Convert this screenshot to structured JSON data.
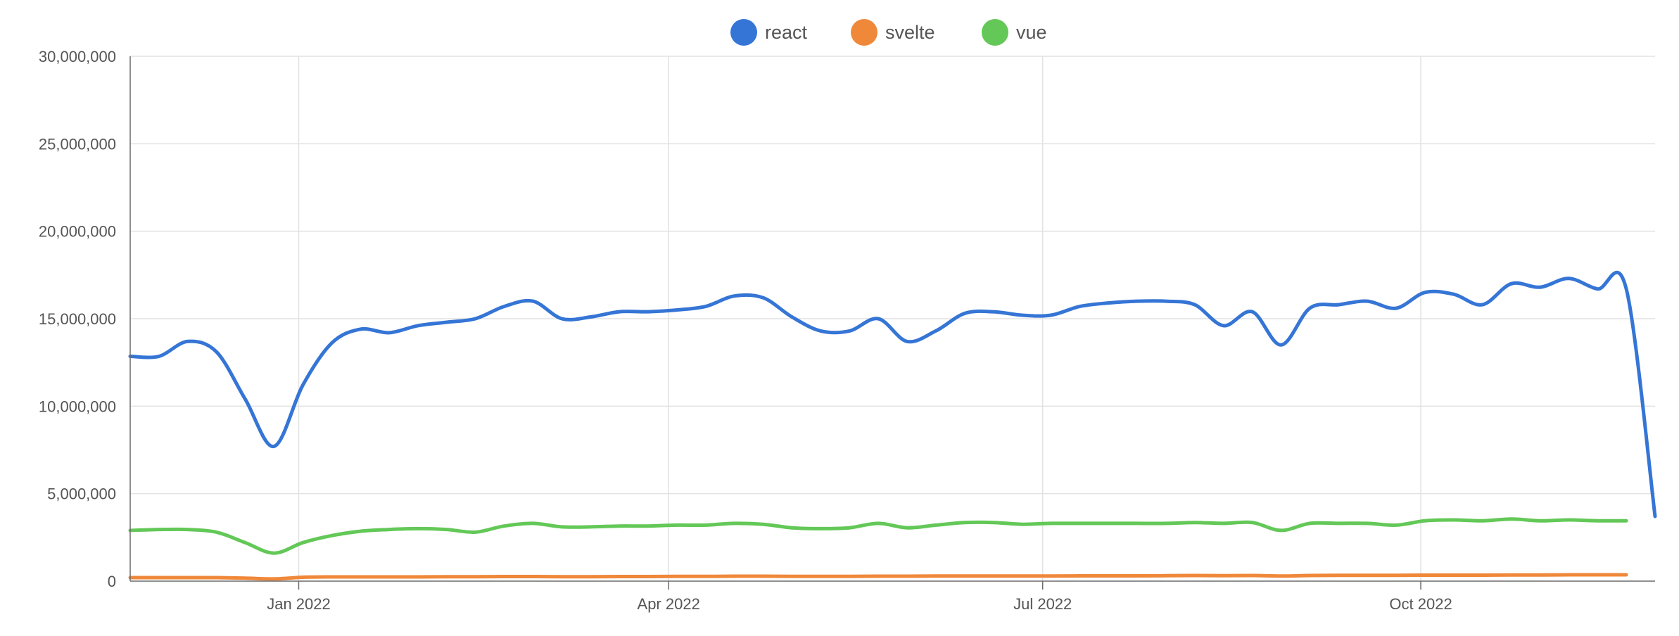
{
  "chart_data": {
    "type": "line",
    "legend_position": "top-center",
    "grid": true,
    "x_range": [
      "2021-11-21",
      "2022-11-20"
    ],
    "ylim": [
      0,
      30000000
    ],
    "y_ticks": [
      0,
      5000000,
      10000000,
      15000000,
      20000000,
      25000000,
      30000000
    ],
    "y_tick_labels": [
      "0",
      "5,000,000",
      "10,000,000",
      "15,000,000",
      "20,000,000",
      "25,000,000",
      "30,000,000"
    ],
    "x_ticks": [
      {
        "date": "2022-01-01",
        "label": "Jan 2022"
      },
      {
        "date": "2022-04-01",
        "label": "Apr 2022"
      },
      {
        "date": "2022-07-01",
        "label": "Jul 2022"
      },
      {
        "date": "2022-10-01",
        "label": "Oct 2022"
      }
    ],
    "highlight_date": "2022-01-01",
    "series": [
      {
        "name": "react",
        "color": "#3575d5",
        "points": [
          [
            "2021-11-21",
            12850000
          ],
          [
            "2021-11-28",
            12850000
          ],
          [
            "2021-12-05",
            13700000
          ],
          [
            "2021-12-12",
            13100000
          ],
          [
            "2021-12-19",
            10400000
          ],
          [
            "2021-12-26",
            7700000
          ],
          [
            "2022-01-02",
            11200000
          ],
          [
            "2022-01-09",
            13600000
          ],
          [
            "2022-01-16",
            14400000
          ],
          [
            "2022-01-23",
            14200000
          ],
          [
            "2022-01-30",
            14600000
          ],
          [
            "2022-02-06",
            14800000
          ],
          [
            "2022-02-13",
            15000000
          ],
          [
            "2022-02-20",
            15700000
          ],
          [
            "2022-02-27",
            16000000
          ],
          [
            "2022-03-06",
            15000000
          ],
          [
            "2022-03-13",
            15100000
          ],
          [
            "2022-03-20",
            15400000
          ],
          [
            "2022-03-27",
            15400000
          ],
          [
            "2022-04-03",
            15500000
          ],
          [
            "2022-04-10",
            15700000
          ],
          [
            "2022-04-17",
            16300000
          ],
          [
            "2022-04-24",
            16200000
          ],
          [
            "2022-05-01",
            15100000
          ],
          [
            "2022-05-08",
            14300000
          ],
          [
            "2022-05-15",
            14300000
          ],
          [
            "2022-05-22",
            15000000
          ],
          [
            "2022-05-29",
            13700000
          ],
          [
            "2022-06-05",
            14300000
          ],
          [
            "2022-06-12",
            15300000
          ],
          [
            "2022-06-19",
            15400000
          ],
          [
            "2022-06-26",
            15200000
          ],
          [
            "2022-07-03",
            15200000
          ],
          [
            "2022-07-10",
            15700000
          ],
          [
            "2022-07-17",
            15900000
          ],
          [
            "2022-07-24",
            16000000
          ],
          [
            "2022-07-31",
            16000000
          ],
          [
            "2022-08-07",
            15800000
          ],
          [
            "2022-08-14",
            14600000
          ],
          [
            "2022-08-21",
            15400000
          ],
          [
            "2022-08-28",
            13500000
          ],
          [
            "2022-09-04",
            15600000
          ],
          [
            "2022-09-11",
            15800000
          ],
          [
            "2022-09-18",
            16000000
          ],
          [
            "2022-09-25",
            15600000
          ],
          [
            "2022-10-02",
            16500000
          ],
          [
            "2022-10-09",
            16400000
          ],
          [
            "2022-10-16",
            15800000
          ],
          [
            "2022-10-23",
            17000000
          ],
          [
            "2022-10-30",
            16800000
          ],
          [
            "2022-11-06",
            17300000
          ],
          [
            "2022-11-13",
            16700000
          ],
          [
            "2022-11-20",
            16700000
          ]
        ]
      },
      {
        "name": "svelte",
        "color": "#f0883a",
        "points": [
          [
            "2021-11-21",
            200000
          ],
          [
            "2021-11-28",
            200000
          ],
          [
            "2021-12-05",
            200000
          ],
          [
            "2021-12-12",
            200000
          ],
          [
            "2021-12-19",
            170000
          ],
          [
            "2021-12-26",
            130000
          ],
          [
            "2022-01-02",
            220000
          ],
          [
            "2022-01-09",
            240000
          ],
          [
            "2022-01-16",
            240000
          ],
          [
            "2022-01-23",
            240000
          ],
          [
            "2022-01-30",
            240000
          ],
          [
            "2022-02-06",
            250000
          ],
          [
            "2022-02-13",
            250000
          ],
          [
            "2022-02-20",
            260000
          ],
          [
            "2022-02-27",
            260000
          ],
          [
            "2022-03-06",
            250000
          ],
          [
            "2022-03-13",
            250000
          ],
          [
            "2022-03-20",
            260000
          ],
          [
            "2022-03-27",
            260000
          ],
          [
            "2022-04-03",
            270000
          ],
          [
            "2022-04-10",
            270000
          ],
          [
            "2022-04-17",
            280000
          ],
          [
            "2022-04-24",
            280000
          ],
          [
            "2022-05-01",
            270000
          ],
          [
            "2022-05-08",
            270000
          ],
          [
            "2022-05-15",
            270000
          ],
          [
            "2022-05-22",
            280000
          ],
          [
            "2022-05-29",
            280000
          ],
          [
            "2022-06-05",
            290000
          ],
          [
            "2022-06-12",
            290000
          ],
          [
            "2022-06-19",
            290000
          ],
          [
            "2022-06-26",
            290000
          ],
          [
            "2022-07-03",
            290000
          ],
          [
            "2022-07-10",
            300000
          ],
          [
            "2022-07-17",
            300000
          ],
          [
            "2022-07-24",
            300000
          ],
          [
            "2022-07-31",
            310000
          ],
          [
            "2022-08-07",
            320000
          ],
          [
            "2022-08-14",
            310000
          ],
          [
            "2022-08-21",
            320000
          ],
          [
            "2022-08-28",
            290000
          ],
          [
            "2022-09-04",
            320000
          ],
          [
            "2022-09-11",
            330000
          ],
          [
            "2022-09-18",
            330000
          ],
          [
            "2022-09-25",
            330000
          ],
          [
            "2022-10-02",
            340000
          ],
          [
            "2022-10-09",
            340000
          ],
          [
            "2022-10-16",
            340000
          ],
          [
            "2022-10-23",
            350000
          ],
          [
            "2022-10-30",
            350000
          ],
          [
            "2022-11-06",
            360000
          ],
          [
            "2022-11-13",
            360000
          ],
          [
            "2022-11-20",
            360000
          ]
        ]
      },
      {
        "name": "vue",
        "color": "#63c857",
        "points": [
          [
            "2021-11-21",
            2900000
          ],
          [
            "2021-11-28",
            2950000
          ],
          [
            "2021-12-05",
            2950000
          ],
          [
            "2021-12-12",
            2800000
          ],
          [
            "2021-12-19",
            2200000
          ],
          [
            "2021-12-26",
            1600000
          ],
          [
            "2022-01-02",
            2200000
          ],
          [
            "2022-01-09",
            2600000
          ],
          [
            "2022-01-16",
            2850000
          ],
          [
            "2022-01-23",
            2950000
          ],
          [
            "2022-01-30",
            3000000
          ],
          [
            "2022-02-06",
            2950000
          ],
          [
            "2022-02-13",
            2800000
          ],
          [
            "2022-02-20",
            3150000
          ],
          [
            "2022-02-27",
            3300000
          ],
          [
            "2022-03-06",
            3100000
          ],
          [
            "2022-03-13",
            3100000
          ],
          [
            "2022-03-20",
            3150000
          ],
          [
            "2022-03-27",
            3150000
          ],
          [
            "2022-04-03",
            3200000
          ],
          [
            "2022-04-10",
            3200000
          ],
          [
            "2022-04-17",
            3300000
          ],
          [
            "2022-04-24",
            3250000
          ],
          [
            "2022-05-01",
            3050000
          ],
          [
            "2022-05-08",
            3000000
          ],
          [
            "2022-05-15",
            3050000
          ],
          [
            "2022-05-22",
            3300000
          ],
          [
            "2022-05-29",
            3050000
          ],
          [
            "2022-06-05",
            3200000
          ],
          [
            "2022-06-12",
            3350000
          ],
          [
            "2022-06-19",
            3350000
          ],
          [
            "2022-06-26",
            3250000
          ],
          [
            "2022-07-03",
            3300000
          ],
          [
            "2022-07-10",
            3300000
          ],
          [
            "2022-07-17",
            3300000
          ],
          [
            "2022-07-24",
            3300000
          ],
          [
            "2022-07-31",
            3300000
          ],
          [
            "2022-08-07",
            3350000
          ],
          [
            "2022-08-14",
            3300000
          ],
          [
            "2022-08-21",
            3350000
          ],
          [
            "2022-08-28",
            2900000
          ],
          [
            "2022-09-04",
            3300000
          ],
          [
            "2022-09-11",
            3300000
          ],
          [
            "2022-09-18",
            3300000
          ],
          [
            "2022-09-25",
            3200000
          ],
          [
            "2022-10-02",
            3450000
          ],
          [
            "2022-10-09",
            3500000
          ],
          [
            "2022-10-16",
            3450000
          ],
          [
            "2022-10-23",
            3550000
          ],
          [
            "2022-10-30",
            3450000
          ],
          [
            "2022-11-06",
            3500000
          ],
          [
            "2022-11-13",
            3450000
          ],
          [
            "2022-11-20",
            3450000
          ]
        ]
      }
    ],
    "series_tail": {
      "react": [
        [
          "2022-11-27",
          3700000
        ]
      ],
      "svelte": [],
      "vue": []
    }
  }
}
